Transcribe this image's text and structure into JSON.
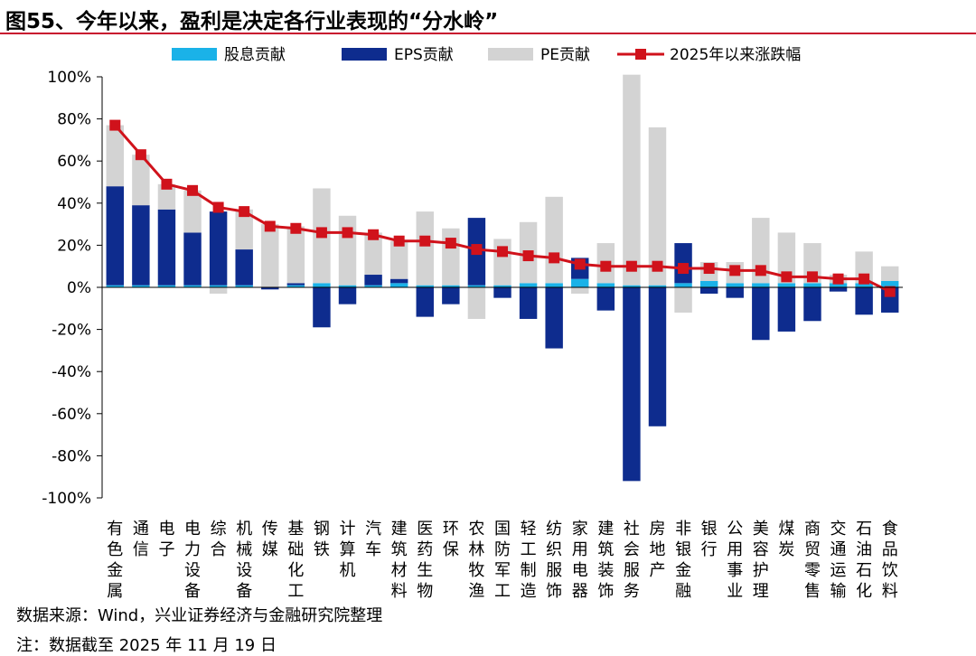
{
  "figure": {
    "title": "图55、今年以来，盈利是决定各行业表现的“分水岭”",
    "source": "数据来源：Wind，兴业证券经济与金融研究院整理",
    "note": "注：数据截至 2025 年 11 月 19 日"
  },
  "colors": {
    "dividend": "#1ab2e8",
    "eps": "#0e2c8e",
    "pe": "#d3d3d3",
    "line": "#d0121b",
    "title_rule": "#c8102e"
  },
  "chart_data": {
    "type": "bar",
    "stacked": true,
    "title": "",
    "xlabel": "",
    "ylabel": "",
    "ylim": [
      -100,
      100
    ],
    "y_ticks": [
      "-100%",
      "-80%",
      "-60%",
      "-40%",
      "-20%",
      "0%",
      "20%",
      "40%",
      "60%",
      "80%",
      "100%"
    ],
    "y_tick_values": [
      -100,
      -80,
      -60,
      -40,
      -20,
      0,
      20,
      40,
      60,
      80,
      100
    ],
    "legend_position": "top",
    "grid": false,
    "categories": [
      "有色金属",
      "通信",
      "电子",
      "电力设备",
      "综合",
      "机械设备",
      "传媒",
      "基础化工",
      "钢铁",
      "计算机",
      "汽车",
      "建筑材料",
      "医药生物",
      "环保",
      "农林牧渔",
      "国防军工",
      "轻工制造",
      "纺织服饰",
      "家用电器",
      "建筑装饰",
      "社会服务",
      "房地产",
      "非银金融",
      "银行",
      "公用事业",
      "美容护理",
      "煤炭",
      "商贸零售",
      "交通运输",
      "石油石化",
      "食品饮料"
    ],
    "series": [
      {
        "name": "股息贡献",
        "kind": "bar",
        "values": [
          1,
          1,
          1,
          1,
          1,
          1,
          0,
          1,
          2,
          1,
          1,
          2,
          1,
          1,
          1,
          1,
          2,
          2,
          4,
          2,
          1,
          1,
          2,
          3,
          2,
          2,
          2,
          2,
          2,
          2,
          3
        ]
      },
      {
        "name": "EPS贡献",
        "kind": "bar",
        "values": [
          47,
          38,
          36,
          25,
          35,
          17,
          -1,
          1,
          -19,
          -8,
          5,
          2,
          -14,
          -8,
          32,
          -5,
          -15,
          -29,
          10,
          -11,
          -92,
          -66,
          19,
          -3,
          -5,
          -25,
          -21,
          -16,
          -2,
          -13,
          -12
        ]
      },
      {
        "name": "PE贡献",
        "kind": "bar",
        "values": [
          29,
          24,
          12,
          20,
          -3,
          19,
          30,
          27,
          45,
          33,
          20,
          18,
          35,
          27,
          -15,
          22,
          29,
          41,
          -3,
          19,
          100,
          75,
          -12,
          9,
          10,
          31,
          24,
          19,
          4,
          15,
          7
        ]
      },
      {
        "name": "2025年以来涨跌幅",
        "kind": "line",
        "values": [
          77,
          63,
          49,
          46,
          38,
          36,
          29,
          28,
          26,
          26,
          25,
          22,
          22,
          21,
          18,
          17,
          15,
          14,
          11,
          10,
          10,
          10,
          9,
          9,
          8,
          8,
          5,
          5,
          4,
          4,
          -2
        ]
      }
    ]
  }
}
